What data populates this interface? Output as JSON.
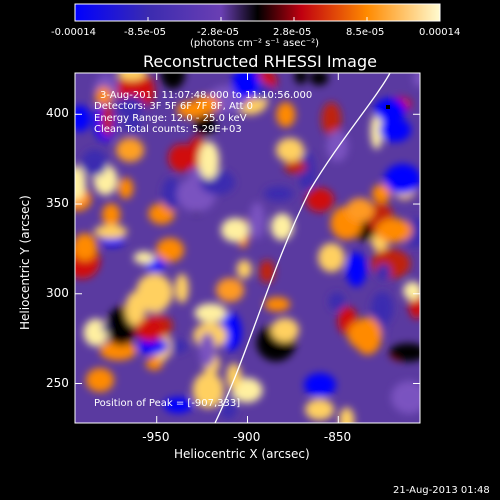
{
  "colorbar": {
    "tick_labels": [
      "-0.00014",
      "-8.5e-05",
      "-2.8e-05",
      "2.8e-05",
      "8.5e-05",
      "0.00014"
    ],
    "unit_label": "(photons cm⁻² s⁻¹ asec⁻²)"
  },
  "plot": {
    "title": "Reconstructed RHESSI Image",
    "xlabel": "Heliocentric X (arcsec)",
    "ylabel": "Heliocentric Y (arcsec)",
    "x_ticks": [
      "-950",
      "-900",
      "-850"
    ],
    "y_ticks": [
      "400",
      "350",
      "300",
      "250"
    ],
    "info_lines": [
      "3-Aug-2011 11:07:48.000 to 11:10:56.000",
      "Detectors: 3F 5F 6F 7F 8F, Att 0",
      "Energy Range: 12.0 - 25.0 keV",
      "Clean     Total counts: 5.29E+03"
    ],
    "peak_label": "Position of Peak = [-907,333]"
  },
  "footer": {
    "date": "21-Aug-2013 01:48"
  },
  "chart_data": {
    "type": "heatmap",
    "title": "Reconstructed RHESSI Image",
    "xlabel": "Heliocentric X (arcsec)",
    "ylabel": "Heliocentric Y (arcsec)",
    "xlim": [
      -995,
      -805
    ],
    "ylim": [
      228,
      423
    ],
    "x_ticks": [
      -950,
      -900,
      -850
    ],
    "y_ticks": [
      250,
      300,
      350,
      400
    ],
    "color_range": [
      -0.00014,
      0.00014
    ],
    "peak": [
      -907,
      333
    ],
    "colormap": [
      "#0000ff",
      "#3b2bb0",
      "#6a3fb3",
      "#000000",
      "#d01010",
      "#ff8a00",
      "#fff5a0"
    ]
  }
}
